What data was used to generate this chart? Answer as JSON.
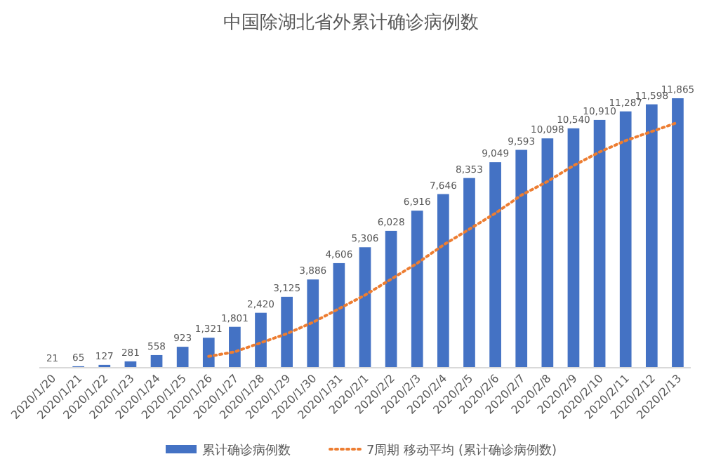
{
  "chart_data": {
    "type": "bar",
    "title": "中国除湖北省外累计确诊病例数",
    "tick_labels": "x",
    "legend": "bottom",
    "categories": [
      "2020/1/20",
      "2020/1/21",
      "2020/1/22",
      "2020/1/23",
      "2020/1/24",
      "2020/1/25",
      "2020/1/26",
      "2020/1/27",
      "2020/1/28",
      "2020/1/29",
      "2020/1/30",
      "2020/1/31",
      "2020/2/1",
      "2020/2/2",
      "2020/2/3",
      "2020/2/4",
      "2020/2/5",
      "2020/2/6",
      "2020/2/7",
      "2020/2/8",
      "2020/2/9",
      "2020/2/10",
      "2020/2/11",
      "2020/2/12",
      "2020/2/13"
    ],
    "series": [
      {
        "name": "累计确诊病例数",
        "color": "#4472c4",
        "values": [
          21,
          65,
          127,
          281,
          558,
          923,
          1321,
          1801,
          2420,
          3125,
          3886,
          4606,
          5306,
          6028,
          6916,
          7646,
          8353,
          9049,
          9593,
          10098,
          10540,
          10910,
          11287,
          11598,
          11865
        ],
        "value_labels": [
          "21",
          "65",
          "127",
          "281",
          "558",
          "923",
          "1,321",
          "1,801",
          "2,420",
          "3,125",
          "3,886",
          "4,606",
          "5,306",
          "6,028",
          "6,916",
          "7,646",
          "8,353",
          "9,049",
          "9,593",
          "10,098",
          "10,540",
          "10,910",
          "11,287",
          "11,598",
          "11,865"
        ]
      },
      {
        "name": "7周期 移动平均 (累计确诊病例数)",
        "type": "line",
        "color": "#ed7d31",
        "line_style": "dotted",
        "values": [
          null,
          null,
          null,
          null,
          null,
          null,
          500,
          700,
          1100,
          1500,
          2000,
          2600,
          3200,
          3900,
          4600,
          5400,
          6100,
          6800,
          7600,
          8200,
          8900,
          9500,
          10000,
          10400,
          10800
        ]
      }
    ]
  }
}
